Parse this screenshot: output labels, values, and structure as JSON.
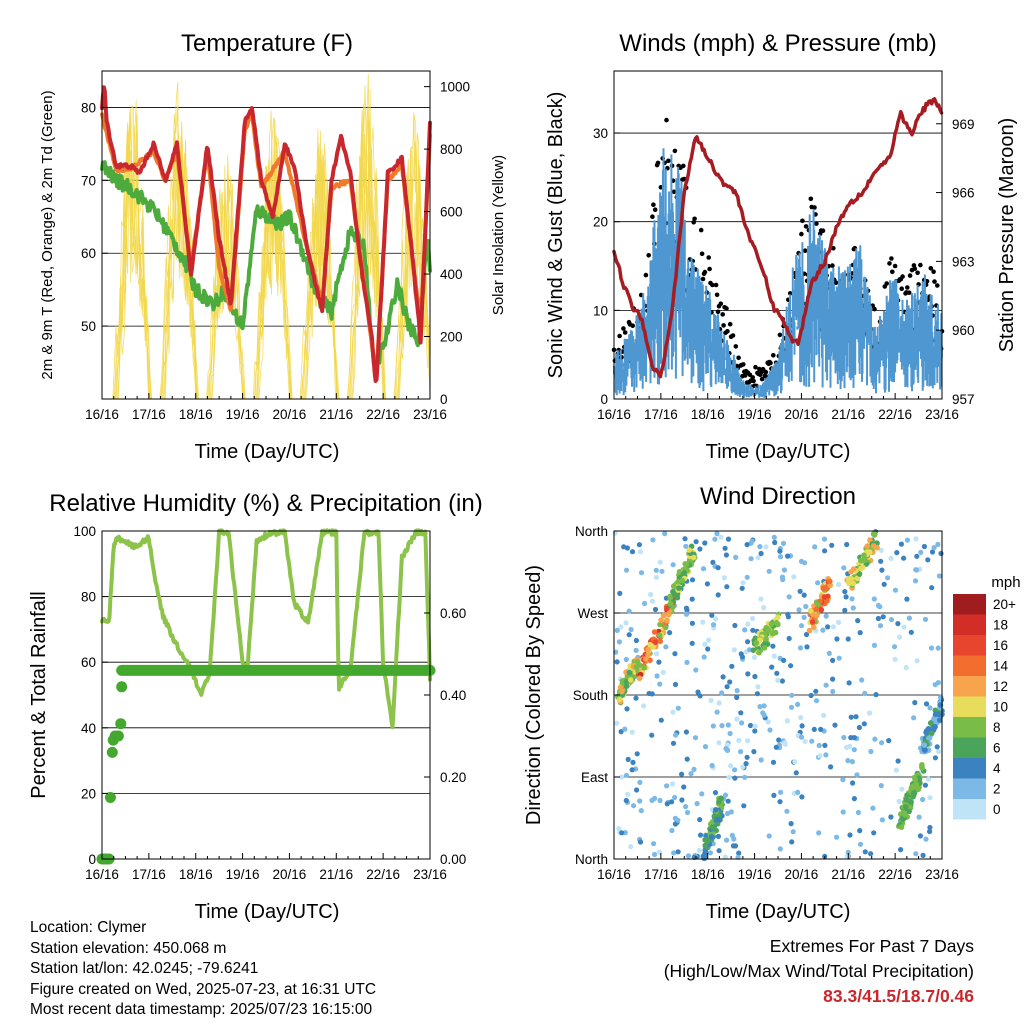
{
  "charts": {
    "temperature": {
      "title": "Temperature (F)",
      "xlabel": "Time (Day/UTC)",
      "ylabel_left": "2m & 9m T (Red, Orange) & 2m Td (Green)",
      "ylabel_right": "Solar Insolation (Yellow)"
    },
    "winds": {
      "title": "Winds (mph) & Pressure (mb)",
      "xlabel": "Time (Day/UTC)",
      "ylabel_left": "Sonic Wind & Gust (Blue, Black)",
      "ylabel_right": "Station Pressure (Maroon)"
    },
    "humidity": {
      "title": "Relative Humidity (%) & Precipitation (in)",
      "xlabel": "Time (Day/UTC)",
      "ylabel_left": "Percent & Total Rainfall"
    },
    "direction": {
      "title": "Wind Direction",
      "xlabel": "Time (Day/UTC)",
      "ylabel_left": "Direction (Colored By Speed)"
    }
  },
  "legend": {
    "unit": "mph",
    "labels": [
      "20+",
      "18",
      "16",
      "14",
      "12",
      "10",
      "8",
      "6",
      "4",
      "2",
      "0"
    ],
    "colors": [
      "#a01c1f",
      "#d32d27",
      "#e8452f",
      "#f26d2e",
      "#f7a44c",
      "#e8dc5c",
      "#79bd48",
      "#4aa45a",
      "#3b82c0",
      "#7cb9e6",
      "#bfe3f7"
    ]
  },
  "info": {
    "location": "Location: Clymer",
    "elevation": "Station elevation: 450.068 m",
    "latlon": "Station lat/lon: 42.0245; -79.6241",
    "created": "Figure created on Wed, 2025-07-23, at 16:31 UTC",
    "recent": "Most recent data timestamp: 2025/07/23 16:15:00"
  },
  "extremes": {
    "line1": "Extremes For Past 7 Days",
    "line2": "(High/Low/Max Wind/Total Precipitation)",
    "values": "83.3/41.5/18.7/0.46"
  },
  "chart_data": [
    {
      "id": "temperature",
      "type": "line",
      "title": "Temperature (F)",
      "x_ticks": [
        "16/16",
        "17/16",
        "18/16",
        "19/16",
        "20/16",
        "21/16",
        "22/16",
        "23/16"
      ],
      "xlabel": "Time (Day/UTC)",
      "ylabel": "2m & 9m T (Red, Orange) & 2m Td (Green)",
      "y2label": "Solar Insolation (Yellow)",
      "ylim": [
        40,
        85
      ],
      "y_ticks": [
        50,
        60,
        70,
        80
      ],
      "y2lim": [
        0,
        1050
      ],
      "y2_ticks": [
        0,
        200,
        400,
        600,
        800,
        1000
      ],
      "grid": "horizontal",
      "series": [
        {
          "color": "#c8282d",
          "x": [
            0,
            0.05,
            0.1,
            0.3,
            0.6,
            0.8,
            1.1,
            1.35,
            1.6,
            1.9,
            2.25,
            2.5,
            2.75,
            3.05,
            3.2,
            3.4,
            3.65,
            3.9,
            4.1,
            4.4,
            4.7,
            4.9,
            5.1,
            5.3,
            5.55,
            5.75,
            5.85,
            6.1,
            6.4,
            6.65,
            6.8,
            7.0
          ],
          "y": [
            80,
            83.3,
            78,
            72,
            72,
            71,
            75,
            70,
            75,
            57,
            75,
            62,
            53,
            78,
            80,
            70,
            65,
            75,
            72,
            60,
            52,
            70,
            76,
            71,
            57,
            49,
            41.5,
            71,
            73,
            58,
            48,
            78
          ]
        },
        {
          "color": "#f07a2c",
          "x": [
            0,
            0.3,
            0.6,
            1.1,
            1.35,
            1.6,
            1.9,
            2.25,
            2.5,
            2.75,
            3.05,
            3.2,
            3.4,
            3.9,
            4.4,
            4.7,
            4.9,
            5.3,
            5.55,
            5.85,
            6.1,
            6.4,
            6.65,
            6.8,
            7.0
          ],
          "y": [
            79,
            71.5,
            71.5,
            74,
            70,
            74,
            58,
            74,
            58,
            52,
            77,
            79,
            69,
            74,
            60,
            53,
            69,
            70,
            58,
            43,
            70,
            72,
            58,
            50,
            76
          ]
        },
        {
          "color": "#4cab3c",
          "x": [
            0,
            0.3,
            0.6,
            1.1,
            1.4,
            1.75,
            2.0,
            2.2,
            2.4,
            2.6,
            2.8,
            3.0,
            3.3,
            3.55,
            3.8,
            4.0,
            4.3,
            4.6,
            4.9,
            5.1,
            5.3,
            5.6,
            5.8,
            6.05,
            6.3,
            6.55,
            6.75,
            6.95,
            7.0
          ],
          "y": [
            72,
            70,
            69,
            66,
            63,
            59,
            55,
            54,
            53,
            55,
            52,
            50,
            66,
            65,
            64,
            65,
            60,
            54,
            52,
            58,
            63,
            61,
            44,
            48,
            56,
            50,
            48,
            62,
            58
          ]
        }
      ],
      "insolation": {
        "color": "#f2d748",
        "peaks": [
          1000,
          1030,
          800,
          950,
          900,
          1050,
          920
        ]
      }
    },
    {
      "id": "winds",
      "type": "scatter",
      "title": "Winds (mph) & Pressure (mb)",
      "x_ticks": [
        "16/16",
        "17/16",
        "18/16",
        "19/16",
        "20/16",
        "21/16",
        "22/16",
        "23/16"
      ],
      "xlabel": "Time (Day/UTC)",
      "ylabel": "Sonic Wind & Gust (Blue, Black)",
      "y2label": "Station Pressure (Maroon)",
      "ylim": [
        0,
        37
      ],
      "y_ticks": [
        0,
        10,
        20,
        30
      ],
      "y2lim": [
        957,
        971.3
      ],
      "y2_ticks": [
        957,
        960,
        963,
        966,
        969
      ],
      "grid": "horizontal",
      "gust_profile": [
        5,
        8,
        12,
        30,
        25,
        18,
        12,
        8,
        3,
        3,
        5,
        14,
        20,
        15,
        13,
        15,
        8,
        14,
        12,
        14,
        10
      ],
      "wind_profile": [
        3,
        5,
        8,
        18,
        16,
        10,
        7,
        4,
        1,
        1,
        3,
        10,
        14,
        10,
        9,
        11,
        5,
        9,
        7,
        9,
        6
      ],
      "pressure": {
        "color": "#a51d22",
        "x": [
          0,
          0.2,
          0.4,
          0.6,
          0.8,
          1.0,
          1.25,
          1.5,
          1.75,
          2.0,
          2.3,
          2.6,
          2.9,
          3.2,
          3.4,
          3.6,
          3.8,
          3.95,
          4.2,
          4.5,
          4.75,
          5.0,
          5.3,
          5.6,
          5.9,
          6.1,
          6.35,
          6.5,
          6.7,
          6.85,
          7.0
        ],
        "y": [
          963.5,
          962,
          961,
          960.5,
          958.5,
          958,
          961,
          966,
          968.5,
          967.5,
          966.5,
          966,
          964,
          962.5,
          961,
          960.5,
          959.5,
          959.5,
          962,
          963,
          964.5,
          965.5,
          966,
          967,
          967.5,
          969.5,
          968.5,
          969.3,
          969.9,
          970,
          969.5
        ]
      }
    },
    {
      "id": "humidity",
      "type": "line",
      "title": "Relative Humidity (%) & Precipitation (in)",
      "x_ticks": [
        "16/16",
        "17/16",
        "18/16",
        "19/16",
        "20/16",
        "21/16",
        "22/16",
        "23/16"
      ],
      "xlabel": "Time (Day/UTC)",
      "ylabel": "Percent & Total Rainfall",
      "ylim": [
        0,
        100
      ],
      "y_ticks": [
        0,
        20,
        40,
        60,
        80,
        100
      ],
      "y2lim": [
        0,
        0.8
      ],
      "y2_ticks": [
        0.0,
        0.2,
        0.4,
        0.6
      ],
      "grid": "horizontal",
      "series": [
        {
          "color": "#8cc34a",
          "x": [
            0,
            0.15,
            0.25,
            0.3,
            0.5,
            0.7,
            1.0,
            1.1,
            1.3,
            1.6,
            1.9,
            2.1,
            2.3,
            2.5,
            2.7,
            3.0,
            3.1,
            3.3,
            3.6,
            3.9,
            4.1,
            4.4,
            4.7,
            5.0,
            5.05,
            5.3,
            5.6,
            5.9,
            6.0,
            6.2,
            6.4,
            6.7,
            6.8,
            6.9,
            7.0
          ],
          "y": [
            73,
            72,
            95,
            98,
            97,
            95,
            98,
            88,
            74,
            65,
            58,
            50,
            57,
            100,
            100,
            60,
            57,
            97,
            100,
            100,
            78,
            72,
            100,
            100,
            52,
            58,
            100,
            100,
            60,
            40,
            92,
            100,
            100,
            100,
            55
          ]
        },
        {
          "color": "#44a82f",
          "x": [
            0,
            0.15,
            0.18,
            0.22,
            0.3,
            0.4,
            0.45,
            0.5,
            7.0
          ],
          "y": [
            0,
            0,
            0.15,
            0.27,
            0.3,
            0.33,
            0.42,
            0.46,
            0.46
          ]
        }
      ]
    },
    {
      "id": "direction",
      "type": "scatter",
      "title": "Wind Direction",
      "x_ticks": [
        "16/16",
        "17/16",
        "18/16",
        "19/16",
        "20/16",
        "21/16",
        "22/16",
        "23/16"
      ],
      "xlabel": "Time (Day/UTC)",
      "ylabel": "Direction (Colored By Speed)",
      "y_ticks": [
        "North",
        "East",
        "South",
        "West",
        "North"
      ],
      "ylim": [
        0,
        360
      ],
      "grid": "horizontal",
      "clusters": [
        {
          "x": [
            0.1,
            0.5
          ],
          "dir": [
            180,
            215
          ],
          "speed": [
            6,
            12
          ]
        },
        {
          "x": [
            0.5,
            1.3
          ],
          "dir": [
            200,
            285
          ],
          "speed": [
            8,
            18
          ]
        },
        {
          "x": [
            1.2,
            1.7
          ],
          "dir": [
            280,
            340
          ],
          "speed": [
            5,
            10
          ]
        },
        {
          "x": [
            1.9,
            2.3
          ],
          "dir": [
            5,
            60
          ],
          "speed": [
            4,
            8
          ]
        },
        {
          "x": [
            3.0,
            3.5
          ],
          "dir": [
            230,
            260
          ],
          "speed": [
            6,
            10
          ]
        },
        {
          "x": [
            4.2,
            4.6
          ],
          "dir": [
            260,
            300
          ],
          "speed": [
            8,
            16
          ]
        },
        {
          "x": [
            5.0,
            5.6
          ],
          "dir": [
            300,
            350
          ],
          "speed": [
            6,
            12
          ]
        },
        {
          "x": [
            6.1,
            6.6
          ],
          "dir": [
            40,
            100
          ],
          "speed": [
            5,
            9
          ]
        },
        {
          "x": [
            6.6,
            7.0
          ],
          "dir": [
            120,
            170
          ],
          "speed": [
            2,
            6
          ]
        }
      ]
    }
  ]
}
